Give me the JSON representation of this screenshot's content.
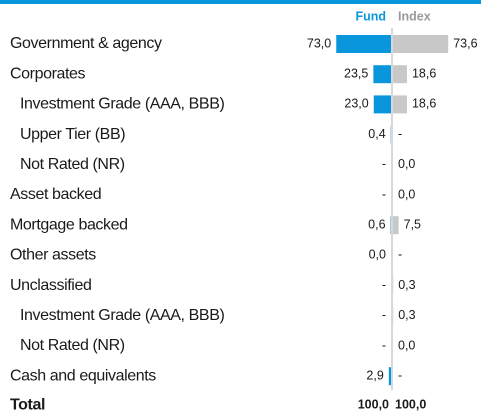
{
  "chart_data": {
    "type": "diverging-bar",
    "categories": [
      "Government & agency",
      "Corporates",
      "Investment Grade (AAA, BBB)",
      "Upper Tier (BB)",
      "Not Rated (NR)",
      "Asset backed",
      "Mortgage backed",
      "Other assets",
      "Unclassified",
      "Investment Grade (AAA, BBB)",
      "Not Rated (NR)",
      "Cash and equivalents"
    ],
    "indented": [
      false,
      false,
      true,
      true,
      true,
      false,
      false,
      false,
      false,
      true,
      true,
      false
    ],
    "series": [
      {
        "name": "Fund",
        "color": "#0a96dc",
        "side": "left",
        "values": [
          73.0,
          23.5,
          23.0,
          0.4,
          null,
          null,
          0.6,
          0.0,
          null,
          null,
          null,
          2.9
        ],
        "value_labels": [
          "73,0",
          "23,5",
          "23,0",
          "0,4",
          "-",
          "-",
          "0,6",
          "0,0",
          "-",
          "-",
          "-",
          "2,9"
        ]
      },
      {
        "name": "Index",
        "color": "#c8c8c8",
        "side": "right",
        "values": [
          73.6,
          18.6,
          18.6,
          null,
          0.0,
          0.0,
          7.5,
          null,
          0.3,
          0.3,
          0.0,
          null
        ],
        "value_labels": [
          "73,6",
          "18,6",
          "18,6",
          "-",
          "0,0",
          "0,0",
          "7,5",
          "-",
          "0,3",
          "0,3",
          "0,0",
          "-"
        ]
      }
    ],
    "total": {
      "label": "Total",
      "values": [
        100.0,
        100.0
      ],
      "value_labels": [
        "100,0",
        "100,0"
      ]
    },
    "xlim": [
      0,
      80
    ]
  }
}
